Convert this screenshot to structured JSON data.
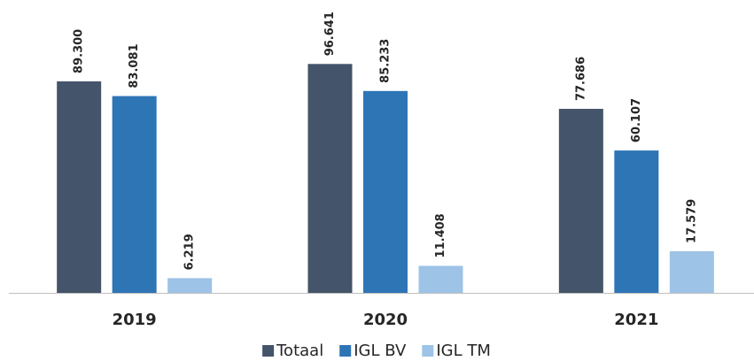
{
  "chart_data": {
    "type": "bar",
    "categories": [
      "2019",
      "2020",
      "2021"
    ],
    "series": [
      {
        "name": "Totaal",
        "color": "#44546a",
        "values": [
          89300,
          96641,
          77686
        ],
        "value_labels": [
          "89.300",
          "96.641",
          "77.686"
        ]
      },
      {
        "name": "IGL BV",
        "color": "#2e75b6",
        "values": [
          83081,
          85233,
          60107
        ],
        "value_labels": [
          "83.081",
          "85.233",
          "60.107"
        ]
      },
      {
        "name": "IGL TM",
        "color": "#9dc3e6",
        "values": [
          6219,
          11408,
          17579
        ],
        "value_labels": [
          "6.219",
          "11.408",
          "17.579"
        ]
      }
    ],
    "legend": "bottom"
  }
}
